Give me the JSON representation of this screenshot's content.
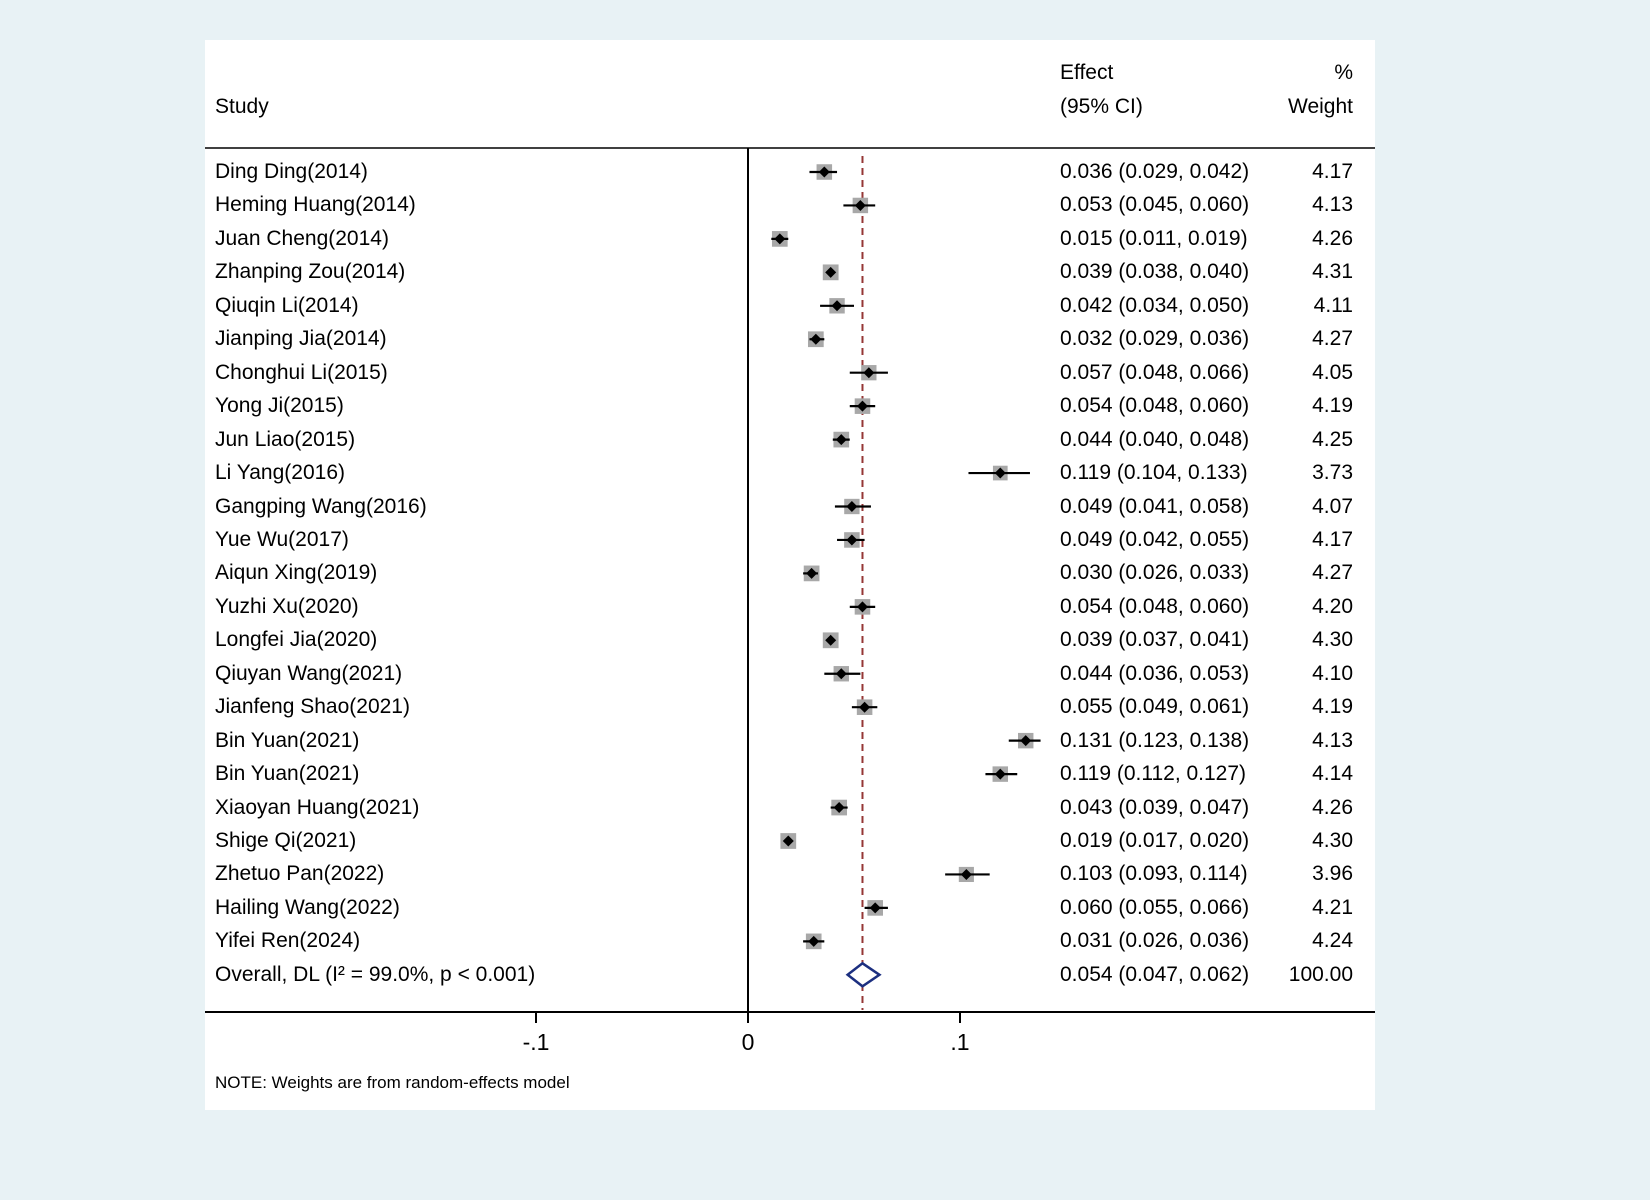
{
  "chart_data": {
    "type": "forest",
    "columns": {
      "study": "Study",
      "effect_line1": "Effect",
      "effect_line2": "(95% CI)",
      "weight_line1": "%",
      "weight_line2": "Weight"
    },
    "x_ticks": [
      {
        "value": -0.1,
        "label": "-.1"
      },
      {
        "value": 0,
        "label": "0"
      },
      {
        "value": 0.1,
        "label": ".1"
      }
    ],
    "xlim": [
      -0.256,
      0.296
    ],
    "zero_line": 0,
    "overall_line_value": 0.054,
    "note": "NOTE: Weights are from random-effects model",
    "studies": [
      {
        "label": "Ding Ding(2014)",
        "effect": 0.036,
        "lo": 0.029,
        "hi": 0.042,
        "effect_text": "0.036 (0.029, 0.042)",
        "weight": "4.17"
      },
      {
        "label": "Heming Huang(2014)",
        "effect": 0.053,
        "lo": 0.045,
        "hi": 0.06,
        "effect_text": "0.053 (0.045, 0.060)",
        "weight": "4.13"
      },
      {
        "label": "Juan Cheng(2014)",
        "effect": 0.015,
        "lo": 0.011,
        "hi": 0.019,
        "effect_text": "0.015 (0.011, 0.019)",
        "weight": "4.26"
      },
      {
        "label": "Zhanping Zou(2014)",
        "effect": 0.039,
        "lo": 0.038,
        "hi": 0.04,
        "effect_text": "0.039 (0.038, 0.040)",
        "weight": "4.31"
      },
      {
        "label": "Qiuqin Li(2014)",
        "effect": 0.042,
        "lo": 0.034,
        "hi": 0.05,
        "effect_text": "0.042 (0.034, 0.050)",
        "weight": "4.11"
      },
      {
        "label": "Jianping Jia(2014)",
        "effect": 0.032,
        "lo": 0.029,
        "hi": 0.036,
        "effect_text": "0.032 (0.029, 0.036)",
        "weight": "4.27"
      },
      {
        "label": "Chonghui Li(2015)",
        "effect": 0.057,
        "lo": 0.048,
        "hi": 0.066,
        "effect_text": "0.057 (0.048, 0.066)",
        "weight": "4.05"
      },
      {
        "label": "Yong Ji(2015)",
        "effect": 0.054,
        "lo": 0.048,
        "hi": 0.06,
        "effect_text": "0.054 (0.048, 0.060)",
        "weight": "4.19"
      },
      {
        "label": "Jun Liao(2015)",
        "effect": 0.044,
        "lo": 0.04,
        "hi": 0.048,
        "effect_text": "0.044 (0.040, 0.048)",
        "weight": "4.25"
      },
      {
        "label": "Li Yang(2016)",
        "effect": 0.119,
        "lo": 0.104,
        "hi": 0.133,
        "effect_text": "0.119 (0.104, 0.133)",
        "weight": "3.73"
      },
      {
        "label": "Gangping Wang(2016)",
        "effect": 0.049,
        "lo": 0.041,
        "hi": 0.058,
        "effect_text": "0.049 (0.041, 0.058)",
        "weight": "4.07"
      },
      {
        "label": "Yue Wu(2017)",
        "effect": 0.049,
        "lo": 0.042,
        "hi": 0.055,
        "effect_text": "0.049 (0.042, 0.055)",
        "weight": "4.17"
      },
      {
        "label": "Aiqun Xing(2019)",
        "effect": 0.03,
        "lo": 0.026,
        "hi": 0.033,
        "effect_text": "0.030 (0.026, 0.033)",
        "weight": "4.27"
      },
      {
        "label": "Yuzhi Xu(2020)",
        "effect": 0.054,
        "lo": 0.048,
        "hi": 0.06,
        "effect_text": "0.054 (0.048, 0.060)",
        "weight": "4.20"
      },
      {
        "label": "Longfei Jia(2020)",
        "effect": 0.039,
        "lo": 0.037,
        "hi": 0.041,
        "effect_text": "0.039 (0.037, 0.041)",
        "weight": "4.30"
      },
      {
        "label": "Qiuyan Wang(2021)",
        "effect": 0.044,
        "lo": 0.036,
        "hi": 0.053,
        "effect_text": "0.044 (0.036, 0.053)",
        "weight": "4.10"
      },
      {
        "label": "Jianfeng Shao(2021)",
        "effect": 0.055,
        "lo": 0.049,
        "hi": 0.061,
        "effect_text": "0.055 (0.049, 0.061)",
        "weight": "4.19"
      },
      {
        "label": "Bin Yuan(2021)",
        "effect": 0.131,
        "lo": 0.123,
        "hi": 0.138,
        "effect_text": "0.131 (0.123, 0.138)",
        "weight": "4.13"
      },
      {
        "label": "Bin Yuan(2021)",
        "effect": 0.119,
        "lo": 0.112,
        "hi": 0.127,
        "effect_text": "0.119 (0.112, 0.127)",
        "weight": "4.14"
      },
      {
        "label": "Xiaoyan Huang(2021)",
        "effect": 0.043,
        "lo": 0.039,
        "hi": 0.047,
        "effect_text": "0.043 (0.039, 0.047)",
        "weight": "4.26"
      },
      {
        "label": "Shige Qi(2021)",
        "effect": 0.019,
        "lo": 0.017,
        "hi": 0.02,
        "effect_text": "0.019 (0.017, 0.020)",
        "weight": "4.30"
      },
      {
        "label": "Zhetuo Pan(2022)",
        "effect": 0.103,
        "lo": 0.093,
        "hi": 0.114,
        "effect_text": "0.103 (0.093, 0.114)",
        "weight": "3.96"
      },
      {
        "label": "Hailing Wang(2022)",
        "effect": 0.06,
        "lo": 0.055,
        "hi": 0.066,
        "effect_text": "0.060 (0.055, 0.066)",
        "weight": "4.21"
      },
      {
        "label": "Yifei Ren(2024)",
        "effect": 0.031,
        "lo": 0.026,
        "hi": 0.036,
        "effect_text": "0.031 (0.026, 0.036)",
        "weight": "4.24"
      }
    ],
    "overall": {
      "label": "Overall, DL (I² = 99.0%, p < 0.001)",
      "effect": 0.054,
      "lo": 0.047,
      "hi": 0.062,
      "effect_text": "0.054 (0.047, 0.062)",
      "weight": "100.00"
    }
  },
  "colors": {
    "background": "#e8f2f5",
    "panel": "#ffffff",
    "weight_box": "#a8a8a8",
    "point_marker": "#000000",
    "ci_line": "#000000",
    "overall_dashed_line": "#953735",
    "overall_diamond_stroke": "#1c2f80",
    "axis": "#000000"
  }
}
